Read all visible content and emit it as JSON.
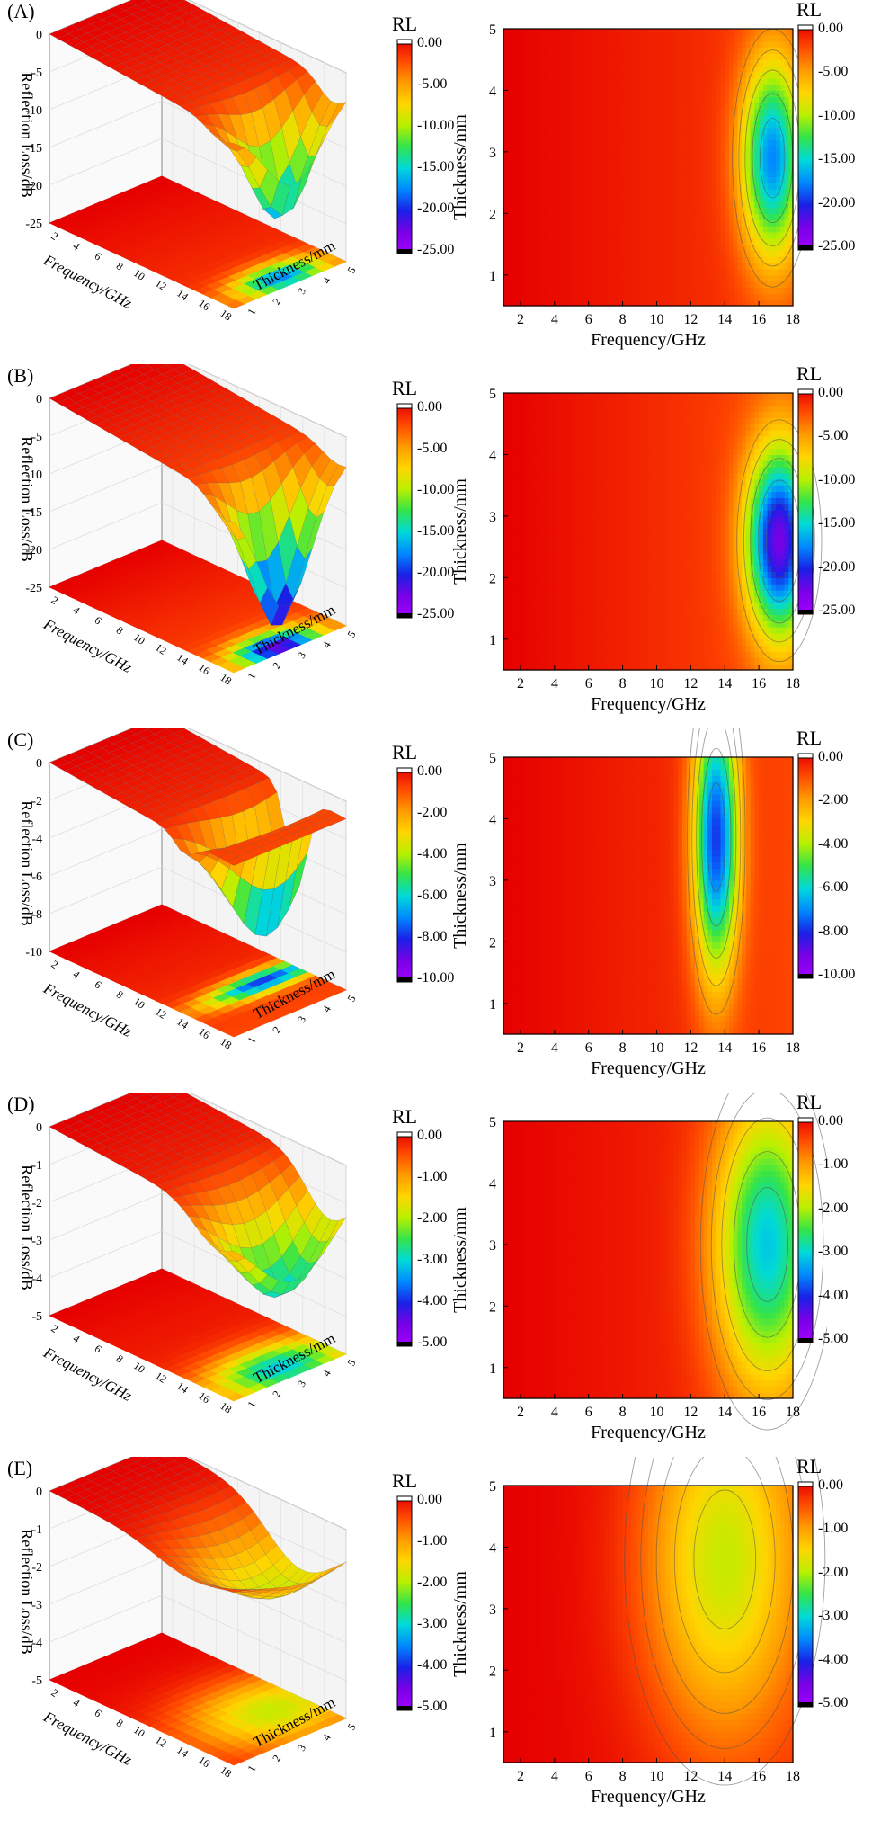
{
  "labels": {
    "rl": "RL",
    "reflection_loss": "Reflection Loss/dB",
    "frequency": "Frequency/GHz",
    "thickness": "Thickness/mm"
  },
  "colormap": [
    "#e60000",
    "#ff4a00",
    "#ff9a00",
    "#ffd500",
    "#b9f000",
    "#33e44a",
    "#00d9d9",
    "#0088ff",
    "#1a20e6",
    "#7a00e6",
    "#a000ff"
  ],
  "chart_data": [
    {
      "id": "A",
      "panel_label": "(A)",
      "type": "heatmap",
      "xlabel": "Frequency/GHz",
      "ylabel": "Thickness/mm",
      "zlabel": "Reflection Loss/dB",
      "colorbar_title": "RL",
      "colorbar_ticks": [
        "0.00",
        "-5.00",
        "-10.00",
        "-15.00",
        "-20.00",
        "-25.00"
      ],
      "zlim": [
        -25,
        0
      ],
      "z_ticks_3d": [
        "0",
        "-5",
        "-10",
        "-15",
        "-20",
        "-25"
      ],
      "x_ticks": [
        "2",
        "4",
        "6",
        "8",
        "10",
        "12",
        "14",
        "16",
        "18"
      ],
      "y_ticks": [
        "1",
        "2",
        "3",
        "4",
        "5"
      ],
      "xlim": [
        1,
        18
      ],
      "ylim": [
        0.5,
        5
      ],
      "min_rl": -17.5,
      "min_location": {
        "frequency_ghz": 16.8,
        "thickness_mm": 2.9
      },
      "spread": {
        "frequency_ghz": 1.8,
        "thickness_mm": 1.6
      }
    },
    {
      "id": "B",
      "panel_label": "(B)",
      "type": "heatmap",
      "xlabel": "Frequency/GHz",
      "ylabel": "Thickness/mm",
      "zlabel": "Reflection Loss/dB",
      "colorbar_title": "RL",
      "colorbar_ticks": [
        "0.00",
        "-5.00",
        "-10.00",
        "-15.00",
        "-20.00",
        "-25.00"
      ],
      "zlim": [
        -25,
        0
      ],
      "z_ticks_3d": [
        "0",
        "-5",
        "-10",
        "-15",
        "-20",
        "-25"
      ],
      "x_ticks": [
        "2",
        "4",
        "6",
        "8",
        "10",
        "12",
        "14",
        "16",
        "18"
      ],
      "y_ticks": [
        "1",
        "2",
        "3",
        "4",
        "5"
      ],
      "xlim": [
        1,
        18
      ],
      "ylim": [
        0.5,
        5
      ],
      "min_rl": -22.5,
      "min_location": {
        "frequency_ghz": 17.2,
        "thickness_mm": 2.6
      },
      "spread": {
        "frequency_ghz": 1.9,
        "thickness_mm": 1.5
      }
    },
    {
      "id": "C",
      "panel_label": "(C)",
      "type": "heatmap",
      "xlabel": "Frequency/GHz",
      "ylabel": "Thickness/mm",
      "zlabel": "Reflection Loss/dB",
      "colorbar_title": "RL",
      "colorbar_ticks": [
        "0.00",
        "-2.00",
        "-4.00",
        "-6.00",
        "-8.00",
        "-10.00"
      ],
      "zlim": [
        -10,
        0
      ],
      "z_ticks_3d": [
        "0",
        "-2",
        "-4",
        "-6",
        "-8",
        "-10"
      ],
      "x_ticks": [
        "2",
        "4",
        "6",
        "8",
        "10",
        "12",
        "14",
        "16",
        "18"
      ],
      "y_ticks": [
        "1",
        "2",
        "3",
        "4",
        "5"
      ],
      "xlim": [
        1,
        18
      ],
      "ylim": [
        0.5,
        5
      ],
      "min_rl": -7.8,
      "min_location": {
        "frequency_ghz": 13.5,
        "thickness_mm": 3.7
      },
      "spread": {
        "frequency_ghz": 1.3,
        "thickness_mm": 2.2
      }
    },
    {
      "id": "D",
      "panel_label": "(D)",
      "type": "heatmap",
      "xlabel": "Frequency/GHz",
      "ylabel": "Thickness/mm",
      "zlabel": "Reflection Loss/dB",
      "colorbar_title": "RL",
      "colorbar_ticks": [
        "0.00",
        "-1.00",
        "-2.00",
        "-3.00",
        "-4.00",
        "-5.00"
      ],
      "zlim": [
        -5,
        0
      ],
      "z_ticks_3d": [
        "0",
        "-1",
        "-2",
        "-3",
        "-4",
        "-5"
      ],
      "x_ticks": [
        "2",
        "4",
        "6",
        "8",
        "10",
        "12",
        "14",
        "16",
        "18"
      ],
      "y_ticks": [
        "1",
        "2",
        "3",
        "4",
        "5"
      ],
      "xlim": [
        1,
        18
      ],
      "ylim": [
        0.5,
        5
      ],
      "min_rl": -3.1,
      "min_location": {
        "frequency_ghz": 16.5,
        "thickness_mm": 3.0
      },
      "spread": {
        "frequency_ghz": 3.0,
        "thickness_mm": 2.3
      }
    },
    {
      "id": "E",
      "panel_label": "(E)",
      "type": "heatmap",
      "xlabel": "Frequency/GHz",
      "ylabel": "Thickness/mm",
      "zlabel": "Reflection Loss/dB",
      "colorbar_title": "RL",
      "colorbar_ticks": [
        "0.00",
        "-1.00",
        "-2.00",
        "-3.00",
        "-4.00",
        "-5.00"
      ],
      "zlim": [
        -5,
        0
      ],
      "z_ticks_3d": [
        "0",
        "-1",
        "-2",
        "-3",
        "-4",
        "-5"
      ],
      "x_ticks": [
        "2",
        "4",
        "6",
        "8",
        "10",
        "12",
        "14",
        "16",
        "18"
      ],
      "y_ticks": [
        "1",
        "2",
        "3",
        "4",
        "5"
      ],
      "xlim": [
        1,
        18
      ],
      "ylim": [
        0.5,
        5
      ],
      "min_rl": -1.9,
      "min_location": {
        "frequency_ghz": 14.0,
        "thickness_mm": 3.8
      },
      "spread": {
        "frequency_ghz": 4.5,
        "thickness_mm": 2.8
      }
    }
  ]
}
